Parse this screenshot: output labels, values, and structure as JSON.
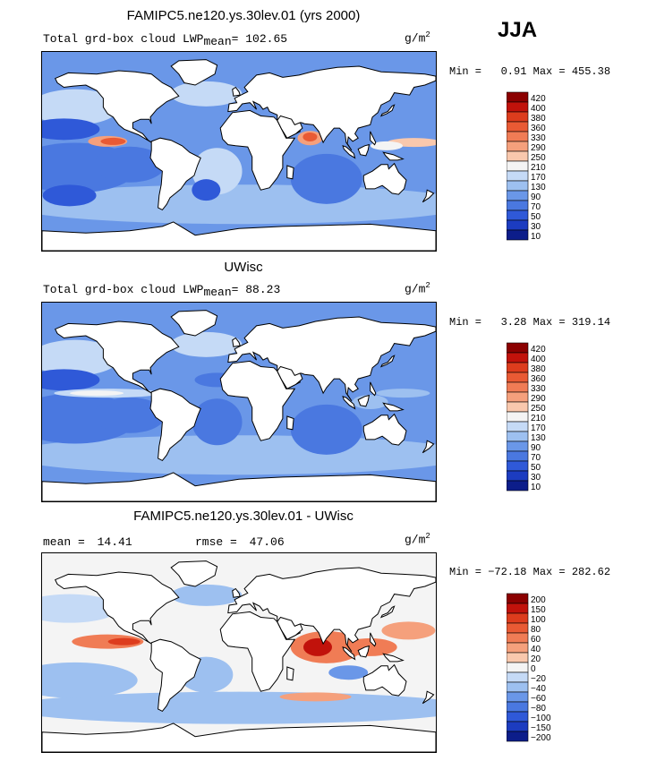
{
  "season": "JJA",
  "panels": [
    {
      "title": "FAMIPC5.ne120.ys.30lev.01 (yrs 2000)",
      "stat_text": "Total grd-box cloud LWP",
      "stat_sub": "mean",
      "stat_value": "= 102.65",
      "rmse_label": "",
      "rmse_value": "",
      "unit": "g/m",
      "unit_sup": "2",
      "minmax": "Min =   0.91 Max = 455.38",
      "legend": [
        "420",
        "400",
        "380",
        "360",
        "330",
        "290",
        "250",
        "210",
        "170",
        "130",
        "90",
        "70",
        "50",
        "30",
        "10"
      ],
      "variant": "model"
    },
    {
      "title": "UWisc",
      "stat_text": "Total grd-box cloud LWP",
      "stat_sub": "mean",
      "stat_value": "=  88.23",
      "rmse_label": "",
      "rmse_value": "",
      "unit": "g/m",
      "unit_sup": "2",
      "minmax": "Min =   3.28 Max = 319.14",
      "legend": [
        "420",
        "400",
        "380",
        "360",
        "330",
        "290",
        "250",
        "210",
        "170",
        "130",
        "90",
        "70",
        "50",
        "30",
        "10"
      ],
      "variant": "obs"
    },
    {
      "title": "FAMIPC5.ne120.ys.30lev.01 - UWisc",
      "stat_text": "mean =",
      "stat_sub": "",
      "stat_value": "14.41",
      "rmse_label": "rmse =",
      "rmse_value": "47.06",
      "unit": "g/m",
      "unit_sup": "2",
      "minmax": "Min = −72.18 Max = 282.62",
      "legend": [
        "200",
        "150",
        "100",
        "80",
        "60",
        "40",
        "20",
        "0",
        "−20",
        "−40",
        "−60",
        "−80",
        "−100",
        "−150",
        "−200"
      ],
      "variant": "diff"
    }
  ],
  "colors": {
    "scale": [
      "#8b0000",
      "#c1120b",
      "#dd3c1d",
      "#e95a34",
      "#f07c55",
      "#f5a07c",
      "#f9c8ad",
      "#f4f4f4",
      "#c5daf6",
      "#9dc0f0",
      "#6a97e8",
      "#4a78e0",
      "#2f59d8",
      "#1c3cc0",
      "#0c1d8a"
    ],
    "land": "#ffffff"
  }
}
